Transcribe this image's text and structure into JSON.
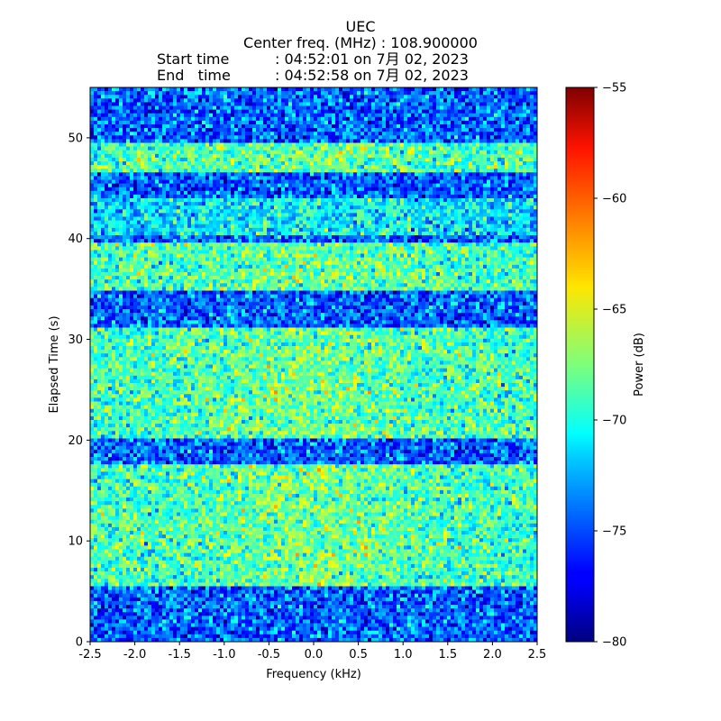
{
  "chart_data": {
    "type": "heatmap",
    "title_lines": [
      "UEC",
      "Center freq. (MHz) : 108.900000"
    ],
    "start_label": "Start time",
    "start_value": ": 04:52:01 on 7月 02, 2023",
    "end_label": "End   time",
    "end_value": ": 04:52:58 on 7月 02, 2023",
    "xlabel": "Frequency (kHz)",
    "ylabel": "Elapsed Time (s)",
    "colorbar_label": "Power (dB)",
    "xlim": [
      -2.5,
      2.5
    ],
    "ylim": [
      0,
      55
    ],
    "clim": [
      -80,
      -55
    ],
    "colormap": "jet",
    "x_ticks": [
      "-2.5",
      "-2.0",
      "-1.5",
      "-1.0",
      "-0.5",
      "0.0",
      "0.5",
      "1.0",
      "1.5",
      "2.0",
      "2.5"
    ],
    "y_ticks": [
      "0",
      "10",
      "20",
      "30",
      "40",
      "50"
    ],
    "colorbar_ticks": [
      "−55",
      "−60",
      "−65",
      "−70",
      "−75",
      "−80"
    ],
    "time_bands": [
      {
        "t0": 0,
        "t1": 5.5,
        "level": "low"
      },
      {
        "t0": 5.5,
        "t1": 17.5,
        "level": "high"
      },
      {
        "t0": 17.5,
        "t1": 20.0,
        "level": "low"
      },
      {
        "t0": 20.0,
        "t1": 31.0,
        "level": "high"
      },
      {
        "t0": 31.0,
        "t1": 35.0,
        "level": "low"
      },
      {
        "t0": 35.0,
        "t1": 39.5,
        "level": "high"
      },
      {
        "t0": 39.5,
        "t1": 40.5,
        "level": "low"
      },
      {
        "t0": 40.5,
        "t1": 44.0,
        "level": "mid"
      },
      {
        "t0": 44.0,
        "t1": 46.5,
        "level": "low"
      },
      {
        "t0": 46.5,
        "t1": 49.5,
        "level": "high"
      },
      {
        "t0": 49.5,
        "t1": 55.0,
        "level": "low"
      }
    ]
  }
}
